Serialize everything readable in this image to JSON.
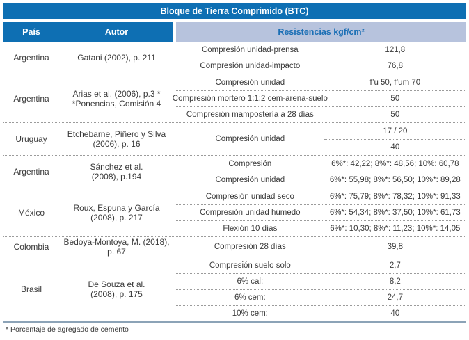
{
  "title": "Bloque de Tierra Comprimido (BTC)",
  "header": {
    "pais": "País",
    "autor": "Autor",
    "resistencias": "Resistencias kgf/cm²"
  },
  "groups": [
    {
      "pais": "Argentina",
      "autor": [
        "Gatani (2002), p. 211"
      ],
      "rows": [
        {
          "label": "Compresión unidad-prensa",
          "value": "121,8"
        },
        {
          "label": "Compresión unidad-impacto",
          "value": "76,8"
        }
      ]
    },
    {
      "pais": "Argentina",
      "autor": [
        "Arias et al. (2006), p.3 *",
        "*Ponencias, Comisión 4"
      ],
      "rows": [
        {
          "label": "Compresión unidad",
          "value": "f’u 50, f’um 70"
        },
        {
          "label": "Compresión mortero 1:1:2 cem-arena-suelo",
          "value": "50"
        },
        {
          "label": "Compresión mampostería a 28 días",
          "value": "50"
        }
      ]
    },
    {
      "pais": "Uruguay",
      "autor": [
        "Etchebarne, Piñero y Silva",
        "(2006), p. 16"
      ],
      "rows": [
        {
          "label": "Compresión unidad",
          "values": [
            "17 / 20",
            "40"
          ]
        }
      ]
    },
    {
      "pais": "Argentina",
      "autor": [
        "Sánchez et al.",
        "(2008), p.194"
      ],
      "rows": [
        {
          "label": "Compresión",
          "value": "6%*: 42,22; 8%*: 48,56; 10%: 60,78"
        },
        {
          "label": "Compresión unidad",
          "value": "6%*: 55,98; 8%*: 56,50; 10%*: 89,28"
        }
      ]
    },
    {
      "pais": "México",
      "autor": [
        "Roux, Espuna y García",
        "(2008), p. 217"
      ],
      "rows": [
        {
          "label": "Compresión unidad seco",
          "value": "6%*: 75,79; 8%*: 78,32; 10%*: 91,33"
        },
        {
          "label": "Compresión unidad húmedo",
          "value": "6%*: 54,34; 8%*: 37,50; 10%*: 61,73"
        },
        {
          "label": "Flexión 10 días",
          "value": "6%*: 10,30; 8%*: 11,23; 10%*: 14,05"
        }
      ]
    },
    {
      "pais": "Colombia",
      "autor": [
        "Bedoya-Montoya, M. (2018), p. 67"
      ],
      "rows": [
        {
          "label": "Compresión 28 días",
          "value": "39,8"
        }
      ]
    },
    {
      "pais": "Brasil",
      "autor": [
        "De Souza et al.",
        "(2008), p. 175"
      ],
      "rows": [
        {
          "label": "Compresión suelo solo",
          "value": "2,7"
        },
        {
          "label": "6% cal:",
          "value": "8,2"
        },
        {
          "label": "6% cem:",
          "value": "24,7"
        },
        {
          "label": "10% cem:",
          "value": "40"
        }
      ]
    }
  ],
  "footnote": "* Porcentaje de agregado de cemento",
  "colors": {
    "title_bar_bg": "#0e6fb3",
    "header_bg": "#0e6fb3",
    "resistencias_header_bg": "#b7c3dd",
    "resistencias_header_text": "#1b6fb5",
    "body_text": "#3a3a3a",
    "dotted_separator": "#9b9b9b",
    "bottom_rule": "#8ca3b7"
  }
}
